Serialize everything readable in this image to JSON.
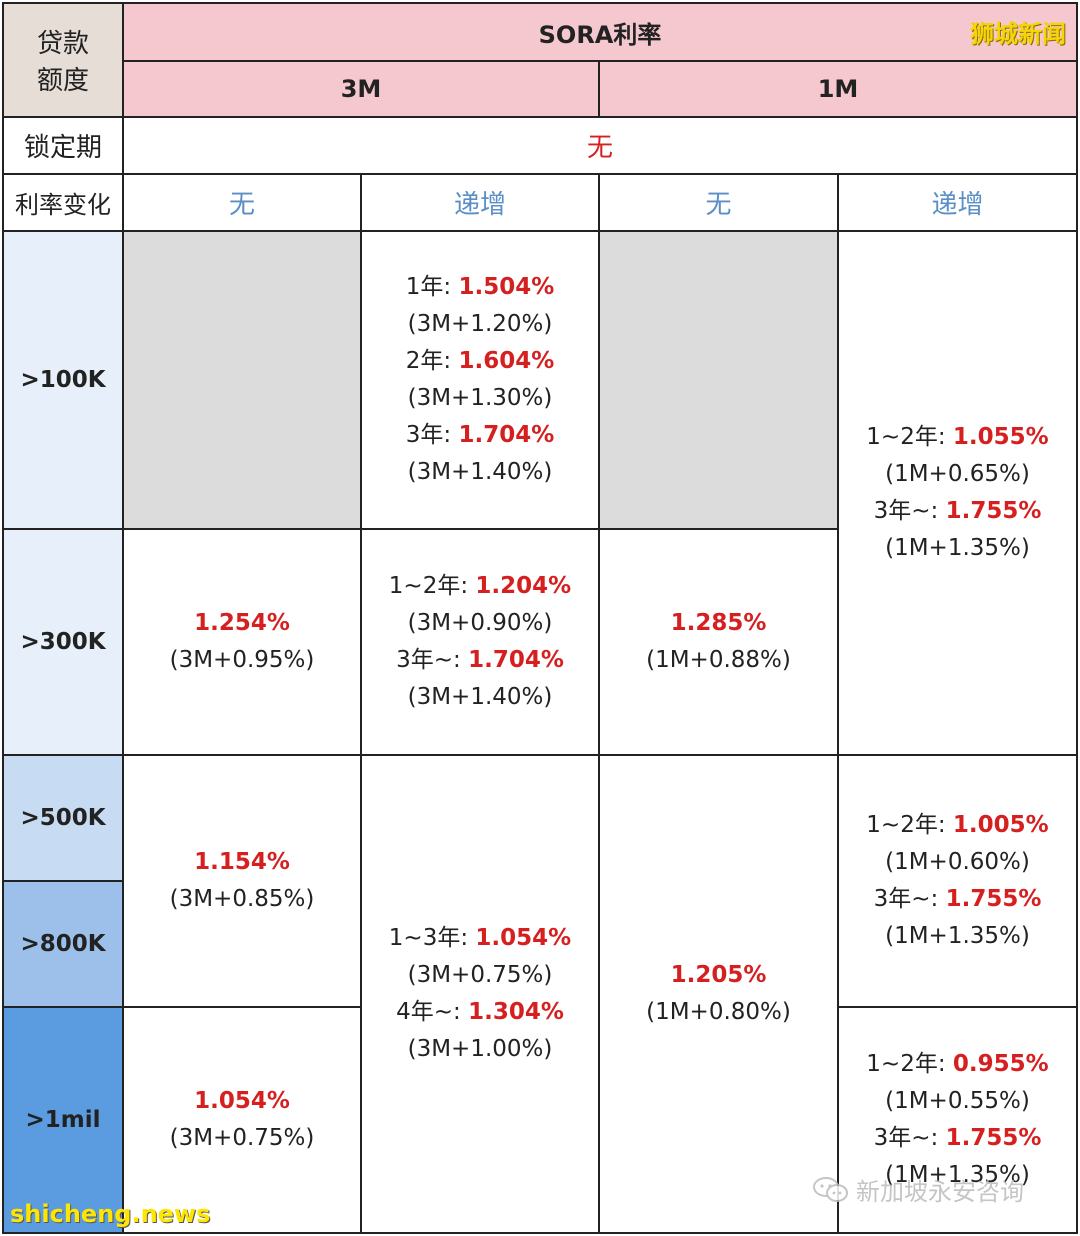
{
  "headers": {
    "loan_amount": [
      "贷款",
      "额度"
    ],
    "sora_rate": "SORA利率",
    "sub_3m": "3M",
    "sub_1m": "1M",
    "lock_label": "锁定期",
    "lock_value": "无",
    "change_label": "利率变化",
    "change_none": "无",
    "change_step": "递增"
  },
  "tiers": [
    ">100K",
    ">300K",
    ">500K",
    ">800K",
    ">1mil"
  ],
  "cells": {
    "c100_3m_step": [
      {
        "label": "1年: ",
        "rate": "1.504%"
      },
      {
        "label": "(3M+1.20%)",
        "rate": ""
      },
      {
        "label": "2年: ",
        "rate": "1.604%"
      },
      {
        "label": "(3M+1.30%)",
        "rate": ""
      },
      {
        "label": "3年: ",
        "rate": "1.704%"
      },
      {
        "label": "(3M+1.40%)",
        "rate": ""
      }
    ],
    "c100_300_1m_step": [
      {
        "label": "1~2年: ",
        "rate": "1.055%"
      },
      {
        "label": "(1M+0.65%)",
        "rate": ""
      },
      {
        "label": "3年~: ",
        "rate": "1.755%"
      },
      {
        "label": "(1M+1.35%)",
        "rate": ""
      }
    ],
    "c300_3m_none": [
      {
        "label": "",
        "rate": "1.254%"
      },
      {
        "label": "(3M+0.95%)",
        "rate": ""
      }
    ],
    "c300_3m_step": [
      {
        "label": "1~2年: ",
        "rate": "1.204%"
      },
      {
        "label": "(3M+0.90%)",
        "rate": ""
      },
      {
        "label": "3年~: ",
        "rate": "1.704%"
      },
      {
        "label": "(3M+1.40%)",
        "rate": ""
      }
    ],
    "c300_1m_none": [
      {
        "label": "",
        "rate": "1.285%"
      },
      {
        "label": "(1M+0.88%)",
        "rate": ""
      }
    ],
    "c500_800_3m_none": [
      {
        "label": "",
        "rate": "1.154%"
      },
      {
        "label": "(3M+0.85%)",
        "rate": ""
      }
    ],
    "c500plus_3m_step": [
      {
        "label": "1~3年: ",
        "rate": "1.054%"
      },
      {
        "label": "(3M+0.75%)",
        "rate": ""
      },
      {
        "label": "4年~: ",
        "rate": "1.304%"
      },
      {
        "label": "(3M+1.00%)",
        "rate": ""
      }
    ],
    "c500plus_1m_none": [
      {
        "label": "",
        "rate": "1.205%"
      },
      {
        "label": "(1M+0.80%)",
        "rate": ""
      }
    ],
    "c500_800_1m_step": [
      {
        "label": "1~2年: ",
        "rate": "1.005%"
      },
      {
        "label": "(1M+0.60%)",
        "rate": ""
      },
      {
        "label": "3年~: ",
        "rate": "1.755%"
      },
      {
        "label": "(1M+1.35%)",
        "rate": ""
      }
    ],
    "c1mil_3m_none": [
      {
        "label": "",
        "rate": "1.054%"
      },
      {
        "label": "(3M+0.75%)",
        "rate": ""
      }
    ],
    "c1mil_1m_step": [
      {
        "label": "1~2年: ",
        "rate": "0.955%"
      },
      {
        "label": "(1M+0.55%)",
        "rate": ""
      },
      {
        "label": "3年~: ",
        "rate": "1.755%"
      },
      {
        "label": "(1M+1.35%)",
        "rate": ""
      }
    ]
  },
  "watermarks": {
    "top_right": "狮城新闻",
    "bottom_left": "shicheng.news",
    "wechat": "新加坡永安咨询"
  }
}
